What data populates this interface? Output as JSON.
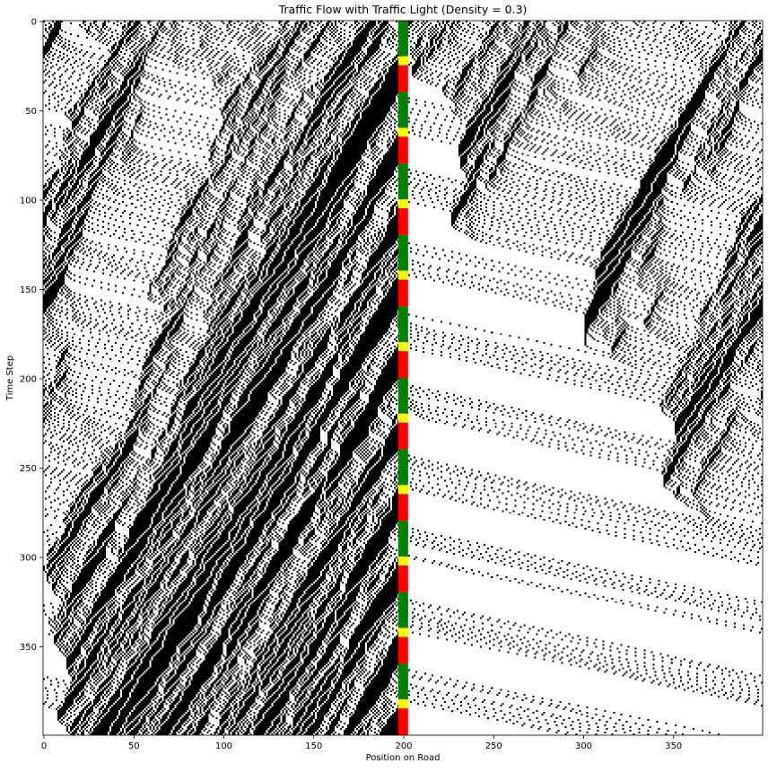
{
  "chart_data": {
    "type": "heatmap",
    "title": "Traffic Flow with Traffic Light (Density = 0.3)",
    "xlabel": "Position on Road",
    "ylabel": "Time Step",
    "xlim": [
      0,
      399
    ],
    "ylim": [
      0,
      399
    ],
    "y_axis_inverted": true,
    "x_ticks": [
      0,
      50,
      100,
      150,
      200,
      250,
      300,
      350
    ],
    "y_ticks": [
      0,
      50,
      100,
      150,
      200,
      250,
      300,
      350
    ],
    "density": 0.3,
    "traffic_light": {
      "position": 198,
      "cycle_length": 40,
      "phases": [
        {
          "state": "green",
          "start": 0,
          "end": 20,
          "color": "#008000"
        },
        {
          "state": "yellow",
          "start": 20,
          "end": 25,
          "color": "#ffff00"
        },
        {
          "state": "red",
          "start": 25,
          "end": 40,
          "color": "#ff0000"
        }
      ]
    },
    "colors": {
      "car": "#000000",
      "empty": "#ffffff"
    },
    "description_of_pattern": ""
  }
}
